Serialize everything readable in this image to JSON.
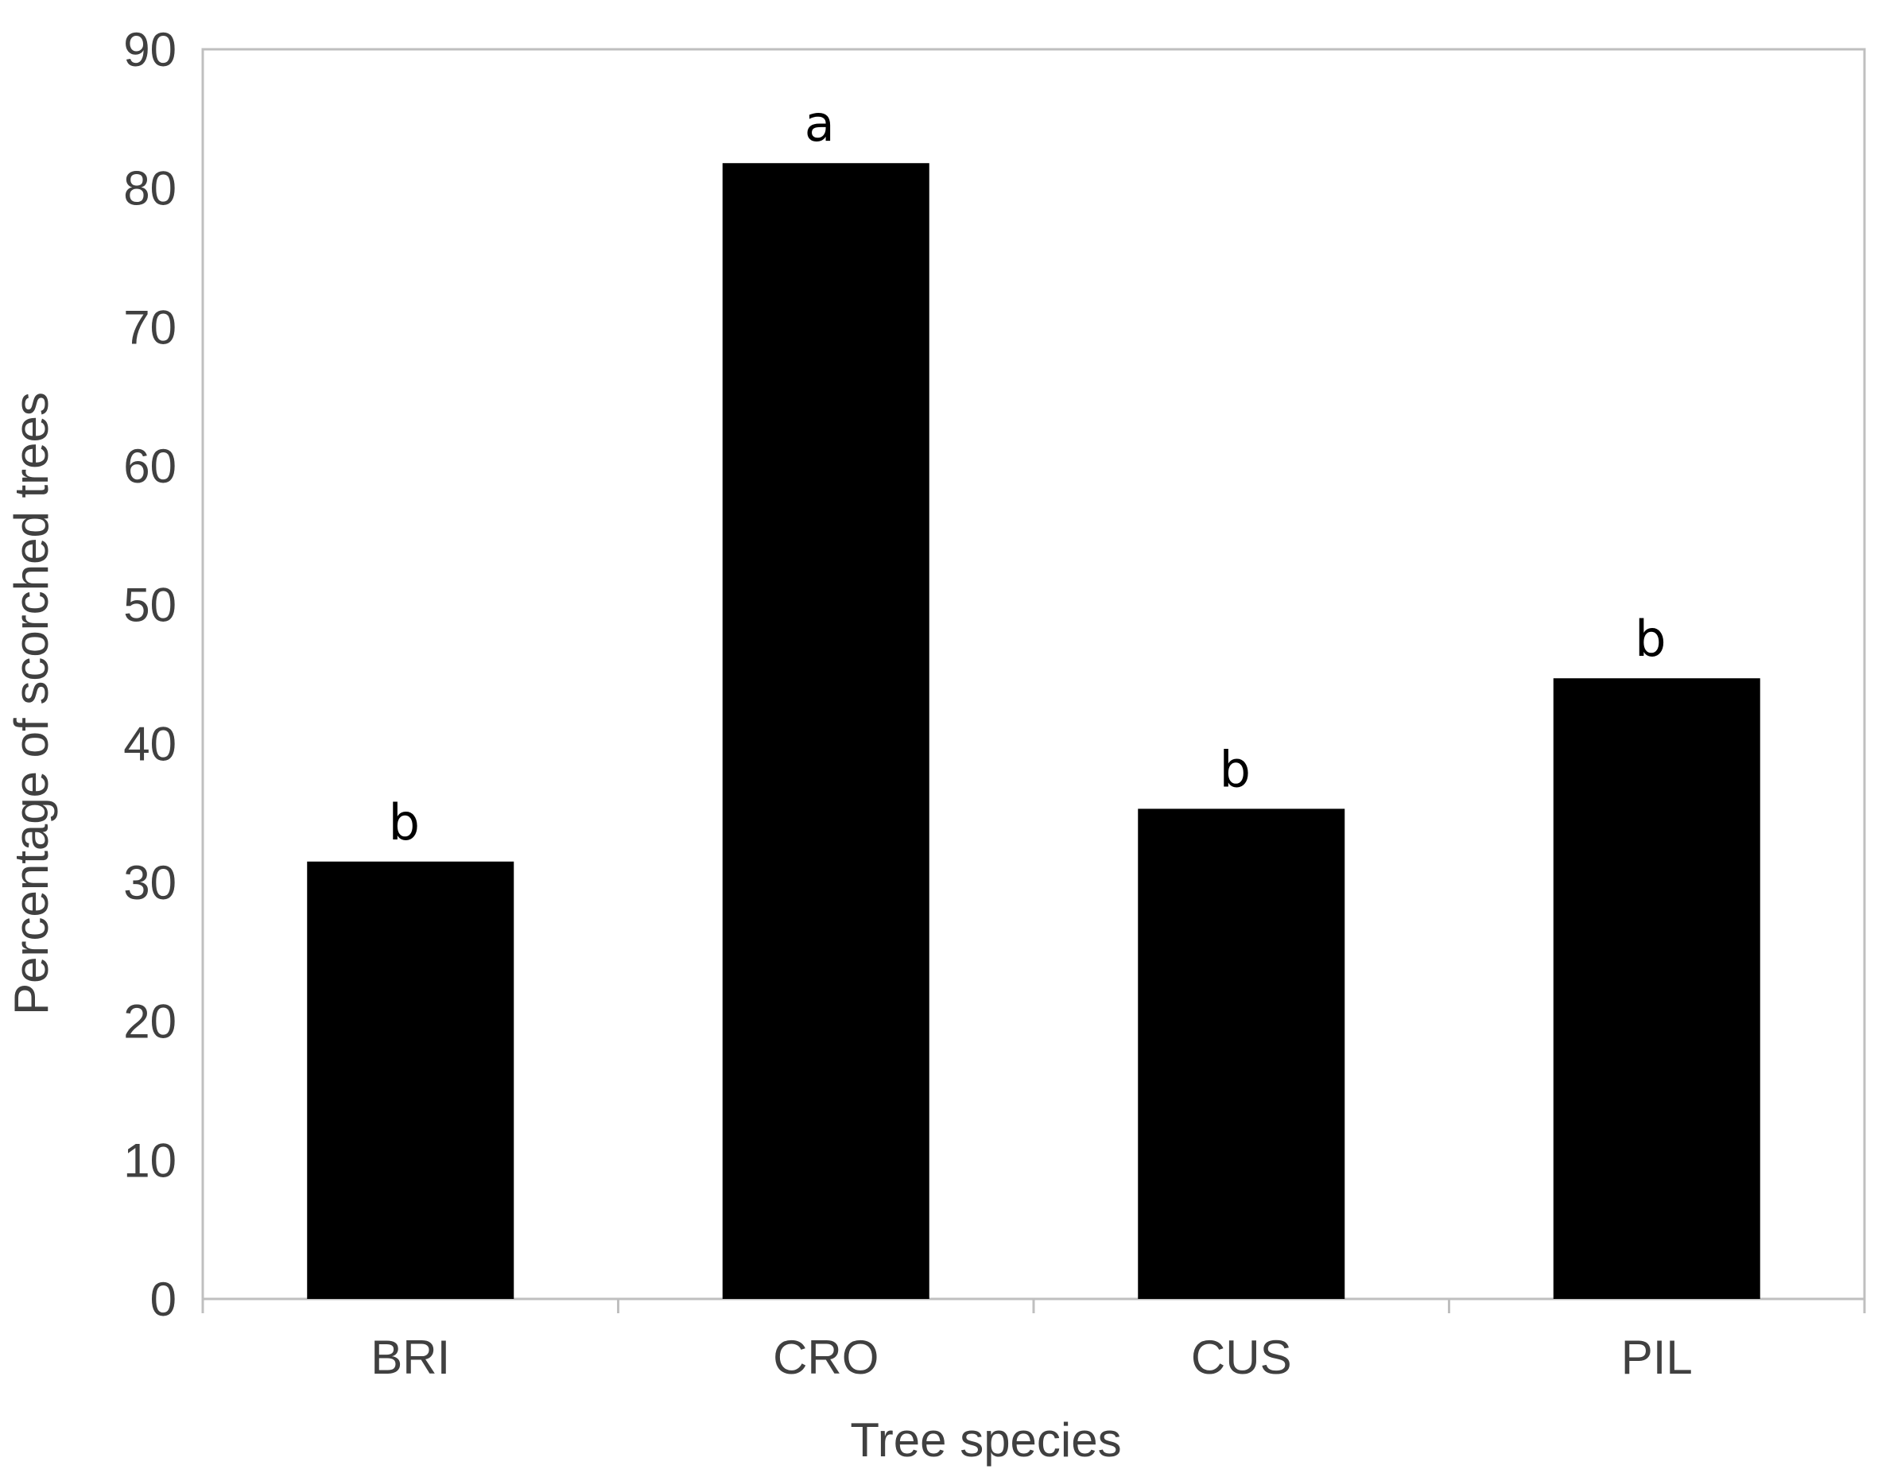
{
  "chart_data": {
    "type": "bar",
    "title": "",
    "xlabel": "Tree species",
    "ylabel": "Percentage of scorched trees",
    "categories": [
      "BRI",
      "CRO",
      "CUS",
      "PIL"
    ],
    "values": [
      31.5,
      81.8,
      35.3,
      44.7
    ],
    "significance_letters": [
      "b",
      "a",
      "b",
      "b"
    ],
    "ylim": [
      0,
      90
    ],
    "yticks": [
      "0",
      "10",
      "20",
      "30",
      "40",
      "50",
      "60",
      "70",
      "80",
      "90"
    ],
    "grid": false,
    "legend": "none",
    "colors": {
      "bar": "#000000",
      "axis": "#bfbfbf",
      "text": "#404040"
    }
  }
}
